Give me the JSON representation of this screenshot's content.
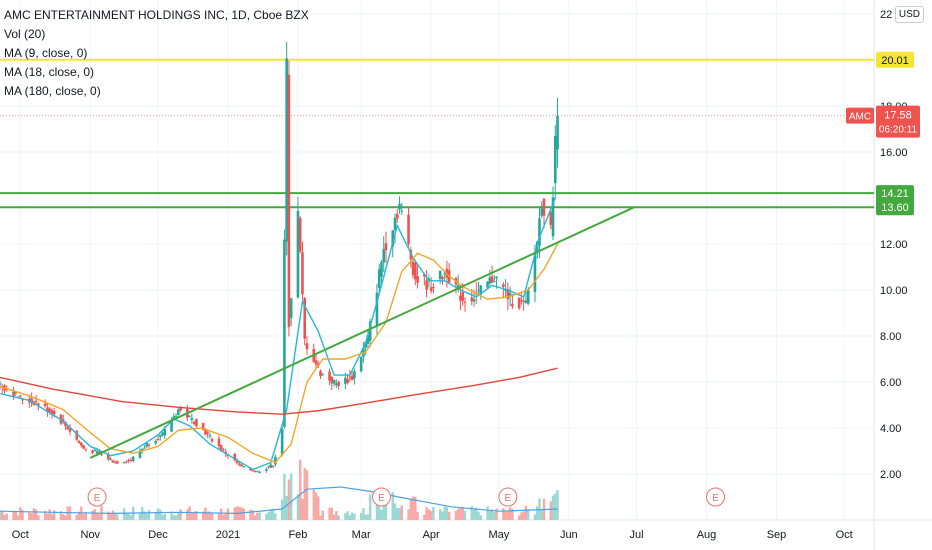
{
  "legend": {
    "title": "AMC ENTERTAINMENT HOLDINGS INC, 1D, Cboe BZX",
    "indicators": [
      "Vol (20)",
      "MA (9, close, 0)",
      "MA (18, close, 0)",
      "MA (180, close, 0)"
    ]
  },
  "currency": "USD",
  "colors": {
    "up": "#26a69a",
    "down": "#ef5350",
    "ma9": "#26b7d6",
    "ma18": "#f2a524",
    "ma180": "#e0463c",
    "trend": "#43a83e",
    "yellow": "#f4e534",
    "green_level": "#43a83e"
  },
  "chart_data": {
    "type": "line",
    "title": "AMC ENTERTAINMENT HOLDINGS INC, 1D, Cboe BZX",
    "xlabel": "",
    "ylabel": "",
    "ylim": [
      0,
      22
    ],
    "y_ticks": [
      "2.00",
      "4.00",
      "6.00",
      "8.00",
      "10.00",
      "12.00",
      "14.00",
      "16.00",
      "18.00",
      "22"
    ],
    "x_ticks": [
      "Oct",
      "Nov",
      "Dec",
      "2021",
      "Feb",
      "Mar",
      "Apr",
      "May",
      "Jun",
      "Jul",
      "Aug",
      "Sep",
      "Oct"
    ],
    "current_price": {
      "label": "AMC",
      "value": "17.58",
      "countdown": "06:20:11"
    },
    "levels": [
      {
        "name": "resistance-yellow",
        "value": 20.01,
        "label": "20.01"
      },
      {
        "name": "level-upper",
        "value": 14.21,
        "label": "14.21"
      },
      {
        "name": "level-lower",
        "value": 13.6,
        "label": "13.60"
      }
    ],
    "trendline": {
      "from": [
        "2020-11-01",
        2.7
      ],
      "to": [
        "2021-06-30",
        13.6
      ]
    },
    "earnings_markers": [
      {
        "date": "2020-11-04",
        "label": "E"
      },
      {
        "date": "2021-03-10",
        "label": "E"
      },
      {
        "date": "2021-05-05",
        "label": "E"
      },
      {
        "date": "2021-08-05",
        "label": "E"
      }
    ],
    "series": [
      {
        "name": "MA (9, close, 0)",
        "points": [
          [
            "2020-09-22",
            5.5
          ],
          [
            "2020-10-05",
            5.2
          ],
          [
            "2020-10-20",
            4.3
          ],
          [
            "2020-11-01",
            3.2
          ],
          [
            "2020-11-10",
            2.8
          ],
          [
            "2020-11-20",
            3.0
          ],
          [
            "2020-12-01",
            3.7
          ],
          [
            "2020-12-08",
            4.4
          ],
          [
            "2020-12-15",
            4.1
          ],
          [
            "2020-12-24",
            3.3
          ],
          [
            "2021-01-05",
            2.6
          ],
          [
            "2021-01-12",
            2.2
          ],
          [
            "2021-01-20",
            2.5
          ],
          [
            "2021-01-27",
            4.8
          ],
          [
            "2021-02-03",
            9.5
          ],
          [
            "2021-02-10",
            8.2
          ],
          [
            "2021-02-17",
            6.3
          ],
          [
            "2021-02-24",
            6.3
          ],
          [
            "2021-03-03",
            7.7
          ],
          [
            "2021-03-10",
            10.2
          ],
          [
            "2021-03-17",
            12.8
          ],
          [
            "2021-03-24",
            11.4
          ],
          [
            "2021-03-31",
            10.4
          ],
          [
            "2021-04-07",
            10.4
          ],
          [
            "2021-04-14",
            10.0
          ],
          [
            "2021-04-21",
            9.7
          ],
          [
            "2021-04-28",
            10.2
          ],
          [
            "2021-05-05",
            10.0
          ],
          [
            "2021-05-12",
            9.7
          ],
          [
            "2021-05-19",
            12.3
          ],
          [
            "2021-05-26",
            14.0
          ]
        ]
      },
      {
        "name": "MA (18, close, 0)",
        "points": [
          [
            "2020-09-22",
            5.8
          ],
          [
            "2020-10-05",
            5.4
          ],
          [
            "2020-10-20",
            4.8
          ],
          [
            "2020-11-01",
            3.8
          ],
          [
            "2020-11-10",
            3.1
          ],
          [
            "2020-11-20",
            2.9
          ],
          [
            "2020-12-01",
            3.2
          ],
          [
            "2020-12-10",
            3.9
          ],
          [
            "2020-12-20",
            4.0
          ],
          [
            "2021-01-01",
            3.6
          ],
          [
            "2021-01-12",
            2.9
          ],
          [
            "2021-01-22",
            2.5
          ],
          [
            "2021-01-29",
            3.3
          ],
          [
            "2021-02-05",
            6.0
          ],
          [
            "2021-02-12",
            7.0
          ],
          [
            "2021-02-22",
            7.0
          ],
          [
            "2021-03-03",
            7.3
          ],
          [
            "2021-03-12",
            8.6
          ],
          [
            "2021-03-19",
            10.8
          ],
          [
            "2021-03-26",
            11.6
          ],
          [
            "2021-04-02",
            11.3
          ],
          [
            "2021-04-09",
            10.6
          ],
          [
            "2021-04-16",
            10.1
          ],
          [
            "2021-04-26",
            9.6
          ],
          [
            "2021-05-05",
            9.7
          ],
          [
            "2021-05-14",
            10.0
          ],
          [
            "2021-05-21",
            10.9
          ],
          [
            "2021-05-27",
            12.0
          ]
        ]
      },
      {
        "name": "MA (180, close, 0)",
        "points": [
          [
            "2020-09-22",
            6.2
          ],
          [
            "2020-10-15",
            5.7
          ],
          [
            "2020-11-15",
            5.15
          ],
          [
            "2020-12-10",
            4.9
          ],
          [
            "2021-01-05",
            4.7
          ],
          [
            "2021-01-25",
            4.6
          ],
          [
            "2021-02-10",
            4.75
          ],
          [
            "2021-03-01",
            5.05
          ],
          [
            "2021-03-25",
            5.45
          ],
          [
            "2021-04-20",
            5.85
          ],
          [
            "2021-05-10",
            6.2
          ],
          [
            "2021-05-27",
            6.6
          ]
        ]
      },
      {
        "name": "Vol (20)",
        "points": [
          [
            "2020-09-22",
            0.4
          ],
          [
            "2020-10-15",
            0.35
          ],
          [
            "2020-11-10",
            0.3
          ],
          [
            "2020-12-10",
            0.35
          ],
          [
            "2021-01-05",
            0.3
          ],
          [
            "2021-01-25",
            0.5
          ],
          [
            "2021-02-05",
            1.4
          ],
          [
            "2021-02-20",
            1.5
          ],
          [
            "2021-03-05",
            1.3
          ],
          [
            "2021-03-20",
            1.0
          ],
          [
            "2021-04-10",
            0.6
          ],
          [
            "2021-05-01",
            0.4
          ],
          [
            "2021-05-27",
            0.5
          ]
        ]
      }
    ],
    "price_path": [
      [
        "2020-09-22",
        5.9
      ],
      [
        "2020-10-01",
        5.3
      ],
      [
        "2020-10-08",
        5.1
      ],
      [
        "2020-10-15",
        4.7
      ],
      [
        "2020-10-22",
        4.0
      ],
      [
        "2020-10-29",
        3.1
      ],
      [
        "2020-11-05",
        2.9
      ],
      [
        "2020-11-12",
        2.5
      ],
      [
        "2020-11-19",
        2.6
      ],
      [
        "2020-11-26",
        3.3
      ],
      [
        "2020-12-03",
        3.7
      ],
      [
        "2020-12-10",
        4.8
      ],
      [
        "2020-12-17",
        4.3
      ],
      [
        "2020-12-24",
        3.6
      ],
      [
        "2020-12-31",
        2.9
      ],
      [
        "2021-01-07",
        2.3
      ],
      [
        "2021-01-14",
        2.1
      ],
      [
        "2021-01-21",
        2.4
      ],
      [
        "2021-01-25",
        4.0
      ],
      [
        "2021-01-27",
        19.8
      ],
      [
        "2021-01-28",
        8.6
      ],
      [
        "2021-02-01",
        13.3
      ],
      [
        "2021-02-04",
        7.8
      ],
      [
        "2021-02-11",
        6.4
      ],
      [
        "2021-02-18",
        5.9
      ],
      [
        "2021-02-25",
        6.2
      ],
      [
        "2021-03-04",
        7.9
      ],
      [
        "2021-03-11",
        11.8
      ],
      [
        "2021-03-18",
        13.7
      ],
      [
        "2021-03-25",
        10.5
      ],
      [
        "2021-04-01",
        10.2
      ],
      [
        "2021-04-08",
        10.8
      ],
      [
        "2021-04-15",
        9.6
      ],
      [
        "2021-04-22",
        9.8
      ],
      [
        "2021-04-29",
        10.6
      ],
      [
        "2021-05-06",
        9.6
      ],
      [
        "2021-05-13",
        9.3
      ],
      [
        "2021-05-18",
        12.2
      ],
      [
        "2021-05-20",
        13.9
      ],
      [
        "2021-05-24",
        12.5
      ],
      [
        "2021-05-26",
        16.4
      ],
      [
        "2021-05-27",
        17.58
      ]
    ]
  }
}
